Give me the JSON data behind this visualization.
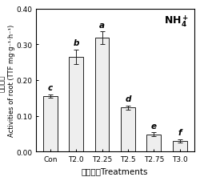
{
  "categories": [
    "Con",
    "T2.0",
    "T2.25",
    "T2.5",
    "T2.75",
    "T3.0"
  ],
  "values": [
    0.155,
    0.265,
    0.318,
    0.123,
    0.048,
    0.03
  ],
  "errors": [
    0.005,
    0.02,
    0.018,
    0.006,
    0.006,
    0.004
  ],
  "letters": [
    "c",
    "b",
    "a",
    "d",
    "e",
    "f"
  ],
  "bar_color": "#eeeeee",
  "bar_edgecolor": "#222222",
  "ylabel_en": "Activities of root (TTF mg",
  "ylabel_unit": " g⁻¹ h⁻¹)",
  "ylabel_cn": "根系活力",
  "xlabel": "场强处理Treatments",
  "annotation": "NH",
  "ylim": [
    0.0,
    0.4
  ],
  "yticks": [
    0.0,
    0.1,
    0.2,
    0.3,
    0.4
  ],
  "tick_fontsize": 6.5,
  "letter_fontsize": 7.5,
  "xlabel_fontsize": 7.5,
  "ylabel_fontsize": 6.0,
  "annot_fontsize": 9,
  "bar_width": 0.55
}
